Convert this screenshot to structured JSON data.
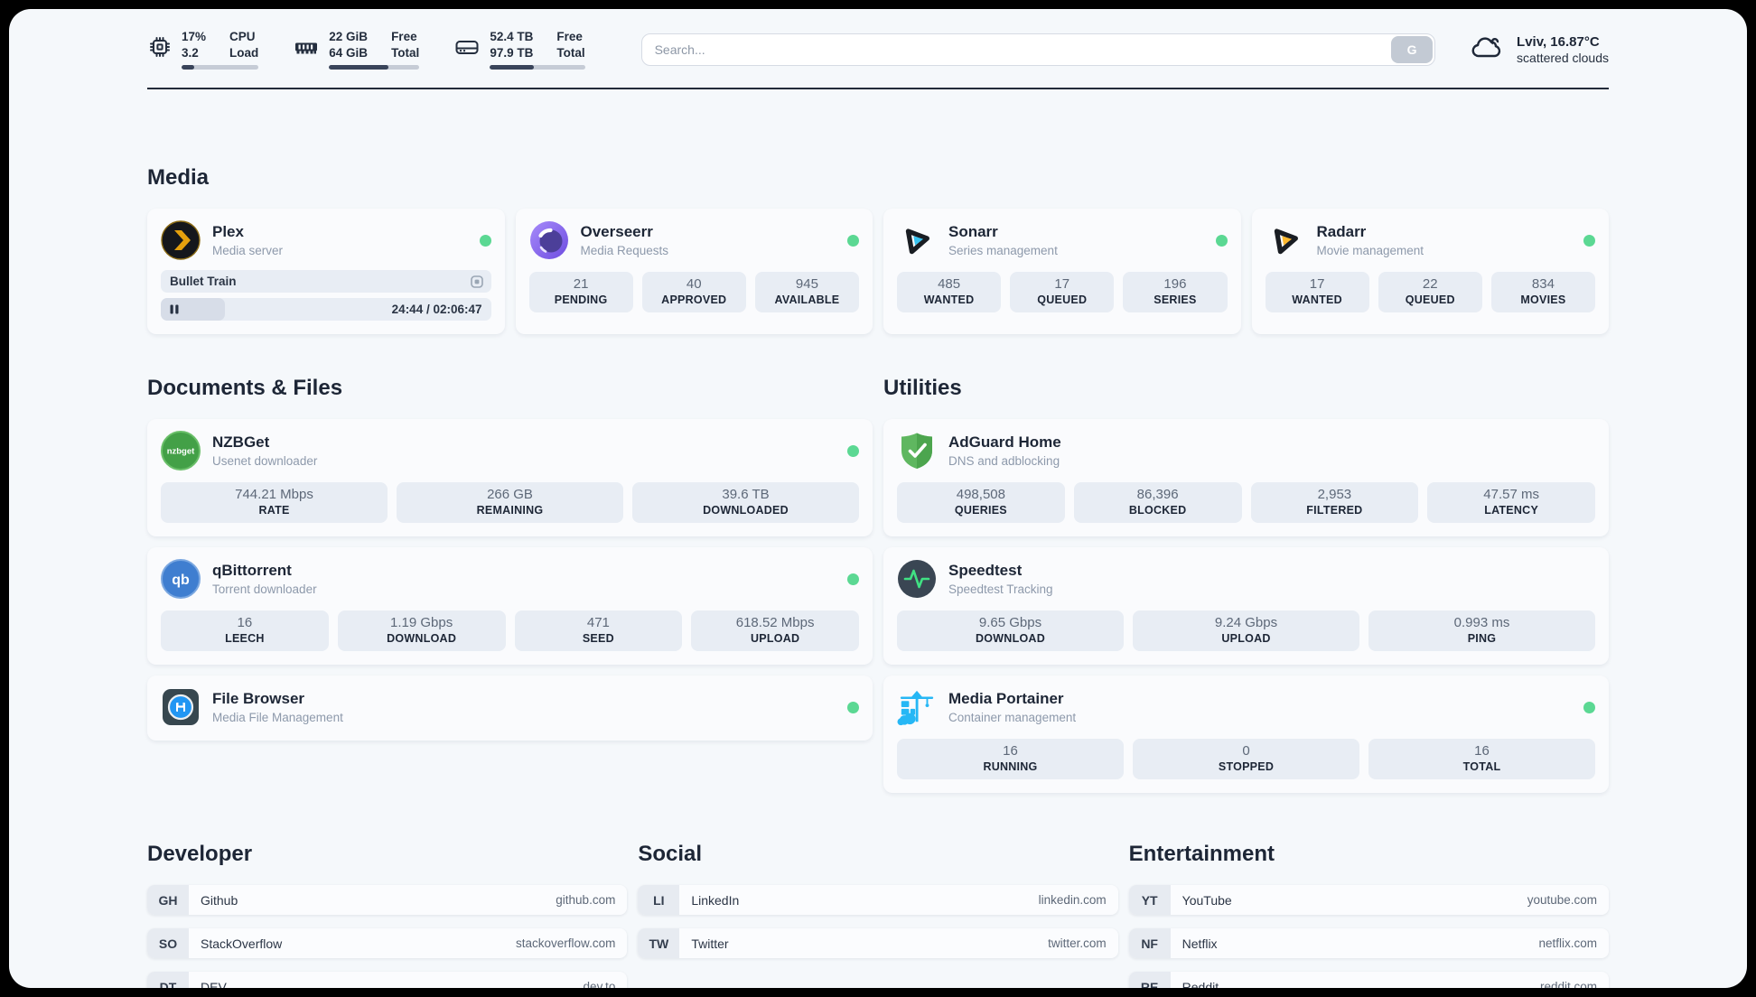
{
  "header": {
    "cpu": {
      "value1": "17%",
      "value2": "3.2",
      "label1": "CPU",
      "label2": "Load",
      "progress": "17%"
    },
    "memory": {
      "value1": "22 GiB",
      "value2": "64 GiB",
      "label1": "Free",
      "label2": "Total",
      "progress": "66%"
    },
    "disk": {
      "value1": "52.4 TB",
      "value2": "97.9 TB",
      "label1": "Free",
      "label2": "Total",
      "progress": "46%"
    },
    "search": {
      "placeholder": "Search...",
      "button_label": "G"
    },
    "weather": {
      "location": "Lviv, 16.87°C",
      "condition": "scattered clouds"
    }
  },
  "sections": {
    "media": "Media",
    "documents": "Documents & Files",
    "utilities": "Utilities",
    "developer": "Developer",
    "social": "Social",
    "entertainment": "Entertainment"
  },
  "apps": {
    "plex": {
      "name": "Plex",
      "desc": "Media server",
      "now_playing": "Bullet Train",
      "time": "24:44 / 02:06:47",
      "progress": "19.5%"
    },
    "overseerr": {
      "name": "Overseerr",
      "desc": "Media Requests",
      "stats": [
        {
          "value": "21",
          "label": "PENDING"
        },
        {
          "value": "40",
          "label": "APPROVED"
        },
        {
          "value": "945",
          "label": "AVAILABLE"
        }
      ]
    },
    "sonarr": {
      "name": "Sonarr",
      "desc": "Series management",
      "stats": [
        {
          "value": "485",
          "label": "WANTED"
        },
        {
          "value": "17",
          "label": "QUEUED"
        },
        {
          "value": "196",
          "label": "SERIES"
        }
      ]
    },
    "radarr": {
      "name": "Radarr",
      "desc": "Movie management",
      "stats": [
        {
          "value": "17",
          "label": "WANTED"
        },
        {
          "value": "22",
          "label": "QUEUED"
        },
        {
          "value": "834",
          "label": "MOVIES"
        }
      ]
    },
    "nzbget": {
      "name": "NZBGet",
      "desc": "Usenet downloader",
      "icon_text": "nzbget",
      "stats": [
        {
          "value": "744.21 Mbps",
          "label": "RATE"
        },
        {
          "value": "266 GB",
          "label": "REMAINING"
        },
        {
          "value": "39.6 TB",
          "label": "DOWNLOADED"
        }
      ]
    },
    "qbittorrent": {
      "name": "qBittorrent",
      "desc": "Torrent downloader",
      "icon_text": "qb",
      "stats": [
        {
          "value": "16",
          "label": "LEECH"
        },
        {
          "value": "1.19 Gbps",
          "label": "DOWNLOAD"
        },
        {
          "value": "471",
          "label": "SEED"
        },
        {
          "value": "618.52 Mbps",
          "label": "UPLOAD"
        }
      ]
    },
    "filebrowser": {
      "name": "File Browser",
      "desc": "Media File Management"
    },
    "adguard": {
      "name": "AdGuard Home",
      "desc": "DNS and adblocking",
      "stats": [
        {
          "value": "498,508",
          "label": "QUERIES"
        },
        {
          "value": "86,396",
          "label": "BLOCKED"
        },
        {
          "value": "2,953",
          "label": "FILTERED"
        },
        {
          "value": "47.57 ms",
          "label": "LATENCY"
        }
      ]
    },
    "speedtest": {
      "name": "Speedtest",
      "desc": "Speedtest Tracking",
      "stats": [
        {
          "value": "9.65 Gbps",
          "label": "DOWNLOAD"
        },
        {
          "value": "9.24 Gbps",
          "label": "UPLOAD"
        },
        {
          "value": "0.993 ms",
          "label": "PING"
        }
      ]
    },
    "portainer": {
      "name": "Media Portainer",
      "desc": "Container management",
      "stats": [
        {
          "value": "16",
          "label": "RUNNING"
        },
        {
          "value": "0",
          "label": "STOPPED"
        },
        {
          "value": "16",
          "label": "TOTAL"
        }
      ]
    }
  },
  "links": {
    "developer": [
      {
        "abbr": "GH",
        "name": "Github",
        "url": "github.com"
      },
      {
        "abbr": "SO",
        "name": "StackOverflow",
        "url": "stackoverflow.com"
      },
      {
        "abbr": "DT",
        "name": "DEV",
        "url": "dev.to"
      }
    ],
    "social": [
      {
        "abbr": "LI",
        "name": "LinkedIn",
        "url": "linkedin.com"
      },
      {
        "abbr": "TW",
        "name": "Twitter",
        "url": "twitter.com"
      }
    ],
    "entertainment": [
      {
        "abbr": "YT",
        "name": "YouTube",
        "url": "youtube.com"
      },
      {
        "abbr": "NF",
        "name": "Netflix",
        "url": "netflix.com"
      },
      {
        "abbr": "RE",
        "name": "Reddit",
        "url": "reddit.com"
      }
    ]
  },
  "icons": {
    "cpu": "chip",
    "memory": "ram-stick",
    "disk": "drive",
    "weather": "cloud",
    "plex": "chevron-circle",
    "overseerr": "eye-swirl-circle",
    "sonarr": "play-triangle-teal",
    "radarr": "play-triangle-amber",
    "nzbget": "green-circle-wordmark",
    "qbittorrent": "blue-circle-qb",
    "filebrowser": "floppy-in-circle",
    "adguard": "shield-check",
    "speedtest": "pulse-circle",
    "portainer": "crane-containers",
    "plex_session": "screen",
    "plex_state": "pause"
  },
  "colors": {
    "status_online": "#5bd893",
    "plex_accent": "#e5a00d",
    "sonarr_accent": "#36c3f1",
    "radarr_accent": "#ffb92e",
    "nzbget_green": "#43a047",
    "qbittorrent_blue": "#3f7ed0",
    "adguard_green": "#5fb760",
    "speedtest_pulse": "#40e183",
    "portainer_blue": "#26b7f5",
    "progress_fill": "#39445a"
  }
}
